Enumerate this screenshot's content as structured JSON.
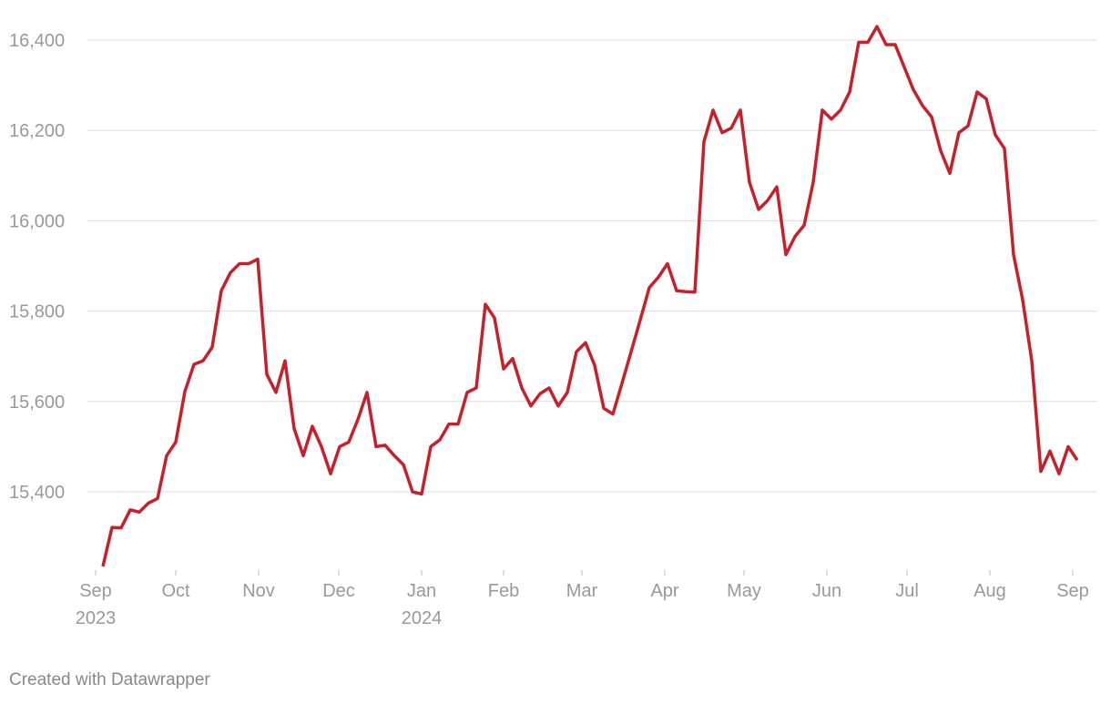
{
  "chart_data": {
    "type": "line",
    "color": "#c8202a",
    "grid": true,
    "footer": "Created with Datawrapper",
    "xlim": [
      -0.8,
      106.5
    ],
    "xticks": [
      {
        "value": -0.8,
        "label": "Sep 2023"
      },
      {
        "value": 8,
        "label": "Oct"
      },
      {
        "value": 17.1,
        "label": "Nov"
      },
      {
        "value": 25.9,
        "label": "Dec"
      },
      {
        "value": 35,
        "label": "Jan 2024"
      },
      {
        "value": 44,
        "label": "Feb"
      },
      {
        "value": 52.6,
        "label": "Mar"
      },
      {
        "value": 61.7,
        "label": "Apr"
      },
      {
        "value": 70.4,
        "label": "May"
      },
      {
        "value": 79.5,
        "label": "Jun"
      },
      {
        "value": 88.3,
        "label": "Jul"
      },
      {
        "value": 97.4,
        "label": "Aug"
      },
      {
        "value": 106.5,
        "label": "Sep"
      }
    ],
    "ylim": [
      15200,
      16500
    ],
    "yticks": [
      {
        "value": 15400,
        "label": "15,400"
      },
      {
        "value": 15600,
        "label": "15,600"
      },
      {
        "value": 15800,
        "label": "15,800"
      },
      {
        "value": 16000,
        "label": "16,000"
      },
      {
        "value": 16200,
        "label": "16,200"
      },
      {
        "value": 16400,
        "label": "16,400"
      }
    ],
    "values": [
      15235,
      15321,
      15320,
      15360,
      15355,
      15375,
      15385,
      15480,
      15510,
      15622,
      15682,
      15690,
      15720,
      15845,
      15885,
      15905,
      15905,
      15915,
      15660,
      15620,
      15690,
      15540,
      15480,
      15545,
      15500,
      15440,
      15500,
      15510,
      15560,
      15620,
      15500,
      15503,
      15480,
      15460,
      15400,
      15395,
      15500,
      15515,
      15550,
      15550,
      15620,
      15630,
      15815,
      15785,
      15672,
      15695,
      15630,
      15590,
      15617,
      15630,
      15590,
      15620,
      15710,
      15730,
      15680,
      15585,
      15572,
      15640,
      15710,
      15780,
      15852,
      15875,
      15905,
      15845,
      15843,
      15842,
      16175,
      16245,
      16195,
      16205,
      16245,
      16085,
      16025,
      16045,
      16075,
      15925,
      15965,
      15990,
      16085,
      16245,
      16225,
      16245,
      16285,
      16395,
      16395,
      16430,
      16390,
      16390,
      16340,
      16290,
      16255,
      16230,
      16155,
      16105,
      16195,
      16210,
      16285,
      16270,
      16190,
      16160,
      15925,
      15825,
      15690,
      15445,
      15490,
      15440,
      15500,
      15470
    ]
  }
}
